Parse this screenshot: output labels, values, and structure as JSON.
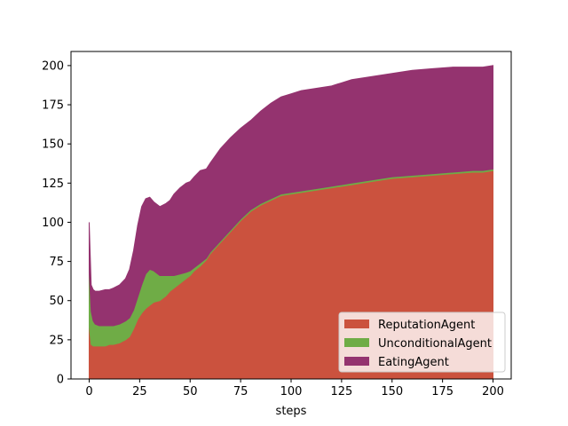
{
  "chart_data": {
    "type": "area",
    "stacked": true,
    "title": "",
    "xlabel": "steps",
    "ylabel": "",
    "xlim": [
      -9,
      209
    ],
    "ylim": [
      0,
      209
    ],
    "xticks": [
      0,
      25,
      50,
      75,
      100,
      125,
      150,
      175,
      200
    ],
    "yticks": [
      0,
      25,
      50,
      75,
      100,
      125,
      150,
      175,
      200
    ],
    "grid": false,
    "legend_position": "lower-right",
    "x": [
      0,
      1,
      2,
      3,
      5,
      8,
      10,
      12,
      15,
      18,
      20,
      22,
      24,
      26,
      28,
      30,
      32,
      35,
      38,
      40,
      42,
      45,
      48,
      50,
      52,
      55,
      58,
      60,
      65,
      70,
      75,
      80,
      85,
      90,
      95,
      100,
      105,
      110,
      115,
      120,
      125,
      130,
      140,
      150,
      160,
      170,
      180,
      190,
      195,
      200
    ],
    "series": [
      {
        "name": "ReputationAgent",
        "color": "#cb523e",
        "values": [
          33,
          22,
          21,
          21,
          21,
          21,
          22,
          22,
          23,
          25,
          27,
          32,
          38,
          42,
          45,
          47,
          49,
          50,
          53,
          56,
          58,
          61,
          64,
          66,
          69,
          72,
          76,
          80,
          87,
          94,
          101,
          107,
          111,
          114,
          117,
          118,
          119,
          120,
          121,
          122,
          123,
          124,
          126,
          128,
          129,
          130,
          131,
          132,
          132,
          133
        ]
      },
      {
        "name": "UnconditionalAgent",
        "color": "#6fac46",
        "values": [
          34,
          21,
          16,
          14,
          13,
          13,
          12,
          12,
          12,
          12,
          12,
          12,
          14,
          18,
          22,
          23,
          20,
          16,
          13,
          10,
          8,
          6,
          4,
          3,
          2,
          2,
          1,
          1,
          1,
          1,
          1,
          1,
          1,
          1,
          1,
          1,
          1,
          1,
          1,
          1,
          1,
          1,
          1,
          1,
          1,
          1,
          1,
          1,
          1,
          1
        ]
      },
      {
        "name": "EatingAgent",
        "color": "#94336f",
        "values": [
          33,
          17,
          20,
          21,
          22,
          23,
          23,
          24,
          25,
          27,
          31,
          38,
          46,
          50,
          48,
          46,
          44,
          44,
          46,
          48,
          52,
          55,
          57,
          57,
          58,
          59,
          57,
          57,
          59,
          59,
          58,
          57,
          59,
          61,
          62,
          63,
          64,
          64,
          64,
          64,
          65,
          66,
          66,
          66,
          67,
          67,
          67,
          66,
          66,
          66
        ]
      }
    ]
  }
}
